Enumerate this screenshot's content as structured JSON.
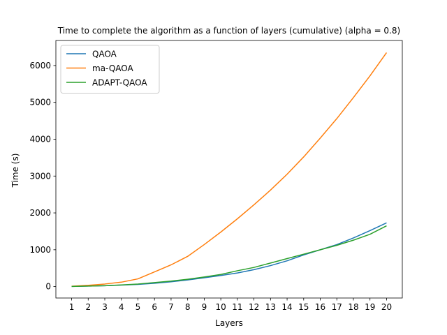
{
  "chart_data": {
    "type": "line",
    "title": "Time to complete the algorithm as a function of layers (cumulative) (alpha = 0.8)",
    "xlabel": "Layers",
    "ylabel": "Time (s)",
    "x": [
      1,
      2,
      3,
      4,
      5,
      6,
      7,
      8,
      9,
      10,
      11,
      12,
      13,
      14,
      15,
      16,
      17,
      18,
      19,
      20
    ],
    "xticks": [
      "1",
      "2",
      "3",
      "4",
      "5",
      "6",
      "7",
      "8",
      "9",
      "10",
      "11",
      "12",
      "13",
      "14",
      "15",
      "16",
      "17",
      "18",
      "19",
      "20"
    ],
    "yticks": [
      0,
      1000,
      2000,
      3000,
      4000,
      5000,
      6000
    ],
    "ytick_labels": [
      "0",
      "1000",
      "2000",
      "3000",
      "4000",
      "5000",
      "6000"
    ],
    "xlim": [
      0.05,
      20.95
    ],
    "ylim": [
      -310,
      6680
    ],
    "legend_position": "top-left",
    "grid": false,
    "series": [
      {
        "name": "QAOA",
        "color": "#1f77b4",
        "values": [
          5,
          15,
          25,
          40,
          60,
          90,
          130,
          180,
          240,
          300,
          370,
          460,
          570,
          700,
          860,
          1000,
          1140,
          1320,
          1520,
          1730
        ]
      },
      {
        "name": "ma-QAOA",
        "color": "#ff7f0e",
        "values": [
          10,
          35,
          70,
          120,
          210,
          400,
          590,
          820,
          1140,
          1480,
          1840,
          2220,
          2620,
          3050,
          3520,
          4030,
          4560,
          5130,
          5720,
          6350
        ]
      },
      {
        "name": "ADAPT-QAOA",
        "color": "#2ca02c",
        "values": [
          5,
          15,
          25,
          45,
          70,
          110,
          150,
          200,
          260,
          330,
          430,
          520,
          640,
          760,
          880,
          1000,
          1120,
          1260,
          1420,
          1650
        ]
      }
    ]
  }
}
